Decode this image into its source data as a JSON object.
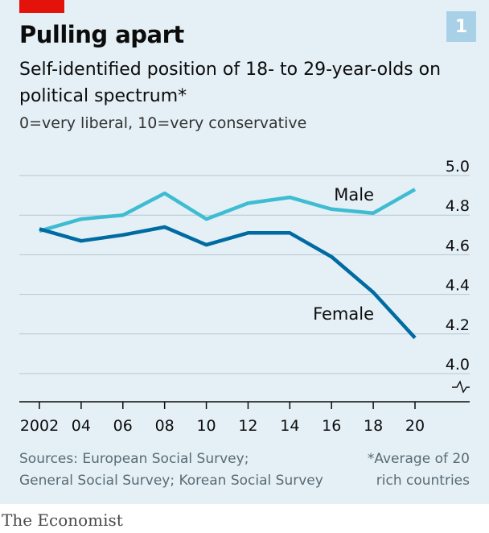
{
  "header": {
    "badge": "1"
  },
  "chart_data": {
    "type": "line",
    "title": "Pulling apart",
    "subtitle": "Self-identified position of 18- to 29-year-olds on political spectrum*",
    "subnote": "0=very liberal, 10=very conservative",
    "x": [
      2002,
      2004,
      2006,
      2008,
      2010,
      2012,
      2014,
      2016,
      2018,
      2020
    ],
    "xtick_labels": [
      "2002",
      "04",
      "06",
      "08",
      "10",
      "12",
      "14",
      "16",
      "18",
      "20"
    ],
    "yticks": [
      4.0,
      4.2,
      4.4,
      4.6,
      4.8,
      5.0
    ],
    "ytick_labels": [
      "4.0",
      "4.2",
      "4.4",
      "4.6",
      "4.8",
      "5.0"
    ],
    "ylim": [
      4.0,
      5.0
    ],
    "y_axis_broken": true,
    "grid": true,
    "series": [
      {
        "name": "Male",
        "color": "#3ebcd2",
        "values": [
          4.72,
          4.78,
          4.8,
          4.91,
          4.78,
          4.86,
          4.89,
          4.83,
          4.81,
          4.93
        ]
      },
      {
        "name": "Female",
        "color": "#006ba2",
        "values": [
          4.73,
          4.67,
          4.7,
          4.74,
          4.65,
          4.71,
          4.71,
          4.59,
          4.41,
          4.18
        ]
      }
    ]
  },
  "footer": {
    "sources_line1": "Sources: European Social Survey;",
    "sources_line2": "General Social Survey; Korean Social Survey",
    "note_line1": "*Average of 20",
    "note_line2": "rich countries",
    "brand": "The Economist"
  }
}
